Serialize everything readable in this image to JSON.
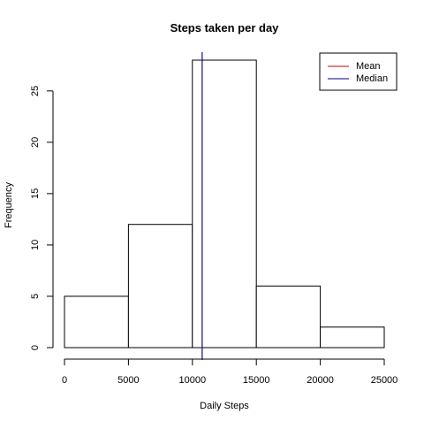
{
  "chart_data": {
    "type": "bar",
    "title": "Steps taken per day",
    "xlabel": "Daily Steps",
    "ylabel": "Frequency",
    "bins": [
      {
        "start": 0,
        "end": 5000,
        "count": 5
      },
      {
        "start": 5000,
        "end": 10000,
        "count": 12
      },
      {
        "start": 10000,
        "end": 15000,
        "count": 28
      },
      {
        "start": 15000,
        "end": 20000,
        "count": 6
      },
      {
        "start": 20000,
        "end": 25000,
        "count": 2
      }
    ],
    "xlim": [
      0,
      25000
    ],
    "ylim": [
      0,
      28
    ],
    "xticks": [
      0,
      5000,
      10000,
      15000,
      20000,
      25000
    ],
    "yticks": [
      0,
      5,
      10,
      15,
      20,
      25
    ],
    "mean": 10766,
    "median": 10765,
    "legend": {
      "placement": "top-right",
      "entries": [
        {
          "label": "Mean",
          "color": "#cc0000"
        },
        {
          "label": "Median",
          "color": "#00008b"
        }
      ]
    },
    "bar_fill": "#ffffff",
    "bar_stroke": "#000000",
    "grid": false
  }
}
